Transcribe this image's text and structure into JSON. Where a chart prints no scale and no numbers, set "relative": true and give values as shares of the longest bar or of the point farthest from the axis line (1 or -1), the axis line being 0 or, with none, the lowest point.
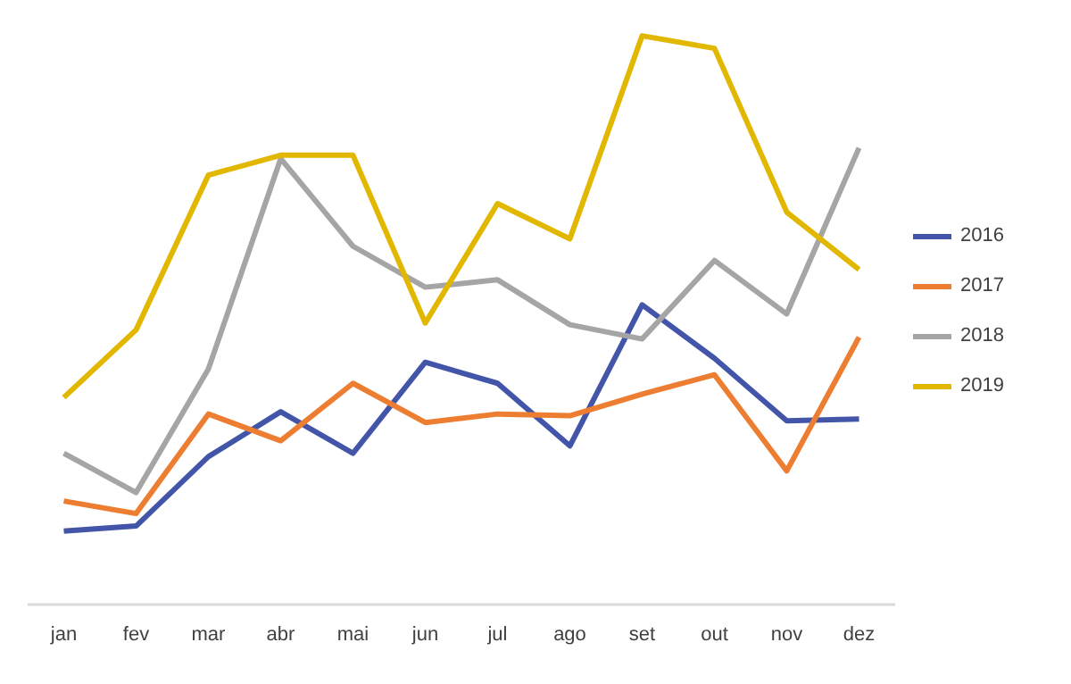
{
  "chart_data": {
    "type": "line",
    "relative": true,
    "categories": [
      "jan",
      "fev",
      "mar",
      "abr",
      "mai",
      "jun",
      "jul",
      "ago",
      "set",
      "out",
      "nov",
      "dez"
    ],
    "series": [
      {
        "name": "2016",
        "color": "#4355a8",
        "values": [
          0.129,
          0.138,
          0.26,
          0.339,
          0.266,
          0.426,
          0.389,
          0.279,
          0.527,
          0.433,
          0.323,
          0.326
        ]
      },
      {
        "name": "2017",
        "color": "#ed7d31",
        "values": [
          0.182,
          0.16,
          0.335,
          0.288,
          0.389,
          0.32,
          0.335,
          0.332,
          0.37,
          0.404,
          0.235,
          0.47
        ]
      },
      {
        "name": "2018",
        "color": "#a5a5a5",
        "values": [
          0.266,
          0.197,
          0.414,
          0.784,
          0.63,
          0.558,
          0.571,
          0.492,
          0.467,
          0.605,
          0.511,
          0.803
        ]
      },
      {
        "name": "2019",
        "color": "#e2b700",
        "values": [
          0.364,
          0.483,
          0.755,
          0.79,
          0.79,
          0.495,
          0.705,
          0.643,
          1.0,
          0.978,
          0.69,
          0.589
        ]
      }
    ],
    "legend": "right",
    "grid": false,
    "marker": "none",
    "line_style": "solid"
  }
}
